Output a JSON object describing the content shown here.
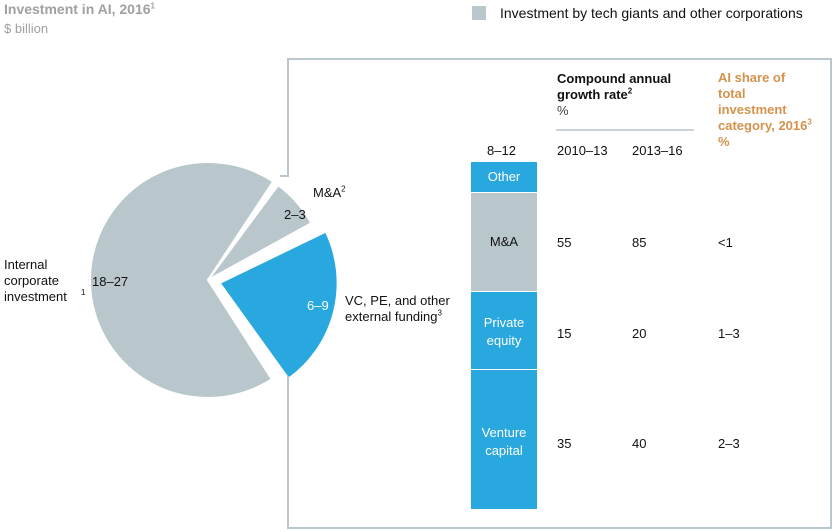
{
  "header": {
    "title": "Investment in AI, 2016",
    "title_note": "1",
    "unit": "$ billion",
    "legend_label": "Investment by tech giants and other corporations"
  },
  "colors": {
    "corporate_gray": "#b9c6cc",
    "external_blue": "#29a8df",
    "ai_share_orange": "#d4924c",
    "title_gray": "#a0a0a0"
  },
  "chart_data": [
    {
      "type": "pie",
      "title": "Investment in AI, 2016",
      "unit": "$ billion",
      "slices": [
        {
          "label": "Internal corporate investment",
          "note": "1",
          "range": "18–27",
          "value": 22.5,
          "color": "#b9c6cc"
        },
        {
          "label": "M&A",
          "note": "2",
          "range": "2–3",
          "value": 2.5,
          "color": "#b9c6cc"
        },
        {
          "label": "VC, PE, and other external funding",
          "note": "3",
          "range": "6–9",
          "value": 7.5,
          "color": "#29a8df",
          "exploded": true
        }
      ]
    },
    {
      "type": "table",
      "bar_total_label": "8–12",
      "segments": [
        {
          "label": "Other",
          "color": "#29a8df",
          "text": "white"
        },
        {
          "label": "M&A",
          "color": "#b9c6cc",
          "text": "dark"
        },
        {
          "label": "Private equity",
          "lines": [
            "Private",
            "equity"
          ],
          "color": "#29a8df",
          "text": "white"
        },
        {
          "label": "Venture capital",
          "lines": [
            "Venture",
            "capital"
          ],
          "color": "#29a8df",
          "text": "white"
        }
      ],
      "cagr_header": {
        "lines": [
          "Compound annual",
          "growth rate"
        ],
        "note": "2",
        "unit": "%"
      },
      "columns": [
        "2010–13",
        "2013–16"
      ],
      "share_header": {
        "lines": [
          "AI share of",
          "total",
          "investment",
          "category, 2016"
        ],
        "note": "3",
        "unit": "%"
      },
      "rows": [
        {
          "segment": "M&A",
          "cagr_2010_13": "55",
          "cagr_2013_16": "85",
          "ai_share": "<1"
        },
        {
          "segment": "Private equity",
          "cagr_2010_13": "15",
          "cagr_2013_16": "20",
          "ai_share": "1–3"
        },
        {
          "segment": "Venture capital",
          "cagr_2010_13": "35",
          "cagr_2013_16": "40",
          "ai_share": "2–3"
        }
      ]
    }
  ]
}
